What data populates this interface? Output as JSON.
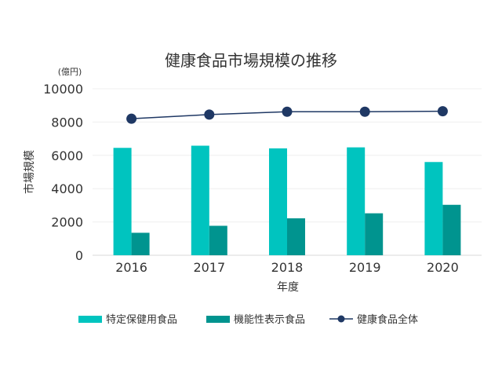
{
  "chart_data": {
    "type": "bar",
    "title": "健康食品市場規模の推移",
    "unit_label": "(億円)",
    "xlabel": "年度",
    "ylabel": "市場規模",
    "categories": [
      "2016",
      "2017",
      "2018",
      "2019",
      "2020"
    ],
    "ylim": [
      0,
      10000
    ],
    "yticks": [
      0,
      2000,
      4000,
      6000,
      8000,
      10000
    ],
    "grid": true,
    "legend_position": "bottom",
    "series": [
      {
        "name": "特定保健用食品",
        "type": "bar",
        "color": "#00c4bf",
        "values": [
          6450,
          6580,
          6420,
          6480,
          5600
        ]
      },
      {
        "name": "機能性表示食品",
        "type": "bar",
        "color": "#00948f",
        "values": [
          1350,
          1770,
          2220,
          2520,
          3030
        ]
      },
      {
        "name": "健康食品全体",
        "type": "line",
        "color": "#1f3864",
        "values": [
          8200,
          8450,
          8620,
          8620,
          8650
        ]
      }
    ]
  }
}
